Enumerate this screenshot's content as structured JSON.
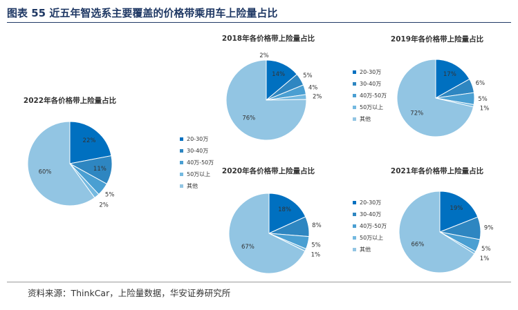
{
  "figure_title": "图表 55 近五年智选系主要覆盖的价格带乘用车上险量占比",
  "source": "资料来源：ThinkCar，上险量数据，华安证券研究所",
  "colors": [
    "#0070c0",
    "#2e86c1",
    "#4a9fd2",
    "#74b9e0",
    "#92c5e3"
  ],
  "chart_data": [
    {
      "type": "pie",
      "title": "2022年各价格带上险量占比",
      "categories": [
        "20-30万",
        "30-40万",
        "40万-50万",
        "50万以上",
        "其他"
      ],
      "legend_labels": [
        "20-30万",
        "30-40万",
        "40万-50万",
        "50万以上",
        "其他"
      ],
      "values": [
        22,
        11,
        5,
        2,
        60
      ],
      "labels": [
        "22%",
        "11%",
        "5%",
        "2%",
        "60%"
      ]
    },
    {
      "type": "pie",
      "title": "2018年各价格带上险量占比",
      "categories": [
        "20-30万",
        "30-40万",
        "40万-50万",
        "50万以上",
        "其他"
      ],
      "values": [
        14,
        5,
        4,
        2,
        76
      ],
      "labels": [
        "14%",
        "5%",
        "4%",
        "2%",
        "76%"
      ],
      "extra_labels": [
        "2%"
      ]
    },
    {
      "type": "pie",
      "title": "2019年各价格带上险量占比",
      "categories": [
        "20-30万",
        "30-40万",
        "40万-50万",
        "50万以上",
        "其他"
      ],
      "legend_labels": [
        "20-30万",
        "30-40万",
        "40万-50万",
        "50万以上",
        "其他"
      ],
      "values": [
        17,
        6,
        5,
        1,
        72
      ],
      "labels": [
        "17%",
        "6%",
        "5%",
        "1%",
        "72%"
      ]
    },
    {
      "type": "pie",
      "title": "2020年各价格带上险量占比",
      "categories": [
        "20-30万",
        "30-40万",
        "40万-50万",
        "50万以上",
        "其他"
      ],
      "values": [
        18,
        8,
        5,
        1,
        67
      ],
      "labels": [
        "18%",
        "8%",
        "5%",
        "1%",
        "67%"
      ]
    },
    {
      "type": "pie",
      "title": "2021年各价格带上险量占比",
      "categories": [
        "20-30万",
        "30-40万",
        "40万-50万",
        "50万以上",
        "其他"
      ],
      "legend_labels": [
        "20-30万",
        "30-40万",
        "40万-50万",
        "50万以上",
        "其他"
      ],
      "values": [
        19,
        9,
        5,
        1,
        66
      ],
      "labels": [
        "19%",
        "9%",
        "5%",
        "1%",
        "66%"
      ]
    }
  ]
}
